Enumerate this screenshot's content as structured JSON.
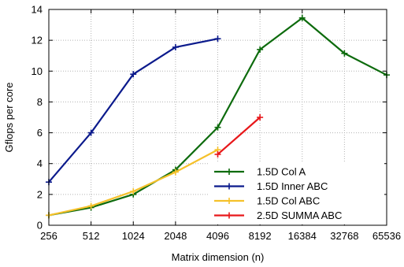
{
  "chart_data": {
    "type": "line",
    "xscale": "log2",
    "categories": [
      "256",
      "512",
      "1024",
      "2048",
      "4096",
      "8192",
      "16384",
      "32768",
      "65536"
    ],
    "xlabel": "Matrix dimension (n)",
    "ylabel": "Gflops per core",
    "ylim": [
      0,
      14
    ],
    "yticks": [
      0,
      2,
      4,
      6,
      8,
      10,
      12,
      14
    ],
    "grid": true,
    "legend_position": "bottom-right",
    "series": [
      {
        "name": "1.5D Col A",
        "color": "#0d6b0d",
        "x": [
          256,
          512,
          1024,
          2048,
          4096,
          8192,
          16384,
          32768,
          65536
        ],
        "y": [
          0.65,
          1.15,
          2.0,
          3.6,
          6.35,
          11.4,
          13.45,
          11.15,
          9.75
        ]
      },
      {
        "name": "1.5D Inner ABC",
        "color": "#0b1a8c",
        "x": [
          256,
          512,
          1024,
          2048,
          4096
        ],
        "y": [
          2.8,
          6.0,
          9.8,
          11.55,
          12.1
        ]
      },
      {
        "name": "1.5D Col ABC",
        "color": "#f5c12b",
        "x": [
          256,
          512,
          1024,
          2048,
          4096
        ],
        "y": [
          0.65,
          1.25,
          2.2,
          3.45,
          4.9
        ]
      },
      {
        "name": "2.5D SUMMA ABC",
        "color": "#e8171a",
        "x": [
          4096,
          8192
        ],
        "y": [
          4.6,
          7.0
        ]
      }
    ]
  }
}
